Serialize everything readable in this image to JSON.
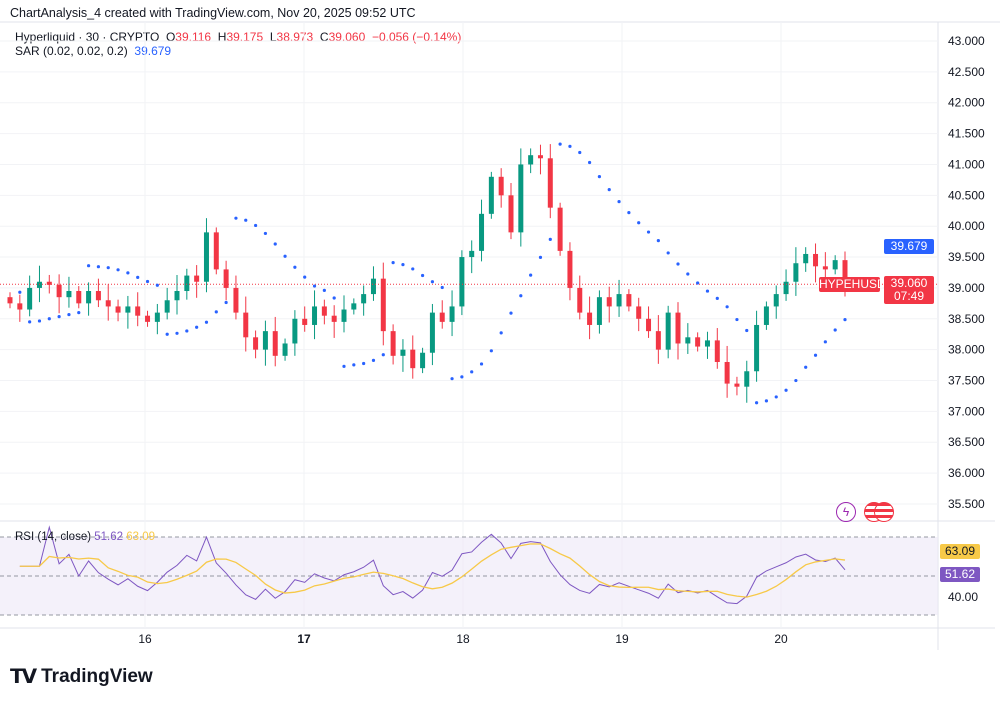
{
  "credit": "ChartAnalysis_4 created with TradingView.com, Nov 20, 2025 09:52 UTC",
  "legend": {
    "symbol": "Hyperliquid · 30 · CRYPTO",
    "o_label": "O",
    "o": "39.116",
    "h_label": "H",
    "h": "39.175",
    "l_label": "L",
    "l": "38.973",
    "c_label": "C",
    "c": "39.060",
    "change": "−0.056 (−0.14%)",
    "sar_label": "SAR (0.02, 0.02, 0.2)",
    "sar_value": "39.679"
  },
  "rsi_legend": {
    "label": "RSI (14, close)",
    "rsi": "51.62",
    "ma": "63.09"
  },
  "price_labels": {
    "sar": "39.679",
    "ticker": "HYPEHUSD",
    "last": "39.060",
    "countdown": "07:49"
  },
  "rsi_labels": {
    "ma": "63.09",
    "rsi": "51.62",
    "level": "40.00"
  },
  "logo": "TradingView",
  "colors": {
    "up": "#089981",
    "down": "#f23645",
    "sar": "#2962ff",
    "rsi": "#7e57c2",
    "rsi_ma": "#f7c948",
    "rsi_band": "#ede7f6"
  },
  "chart_data": {
    "type": "candlestick",
    "symbol": "HYPEHUSD",
    "interval": "30",
    "y_ticks": [
      "43.000",
      "42.500",
      "42.000",
      "41.500",
      "41.000",
      "40.500",
      "40.000",
      "39.500",
      "39.000",
      "38.500",
      "38.000",
      "37.500",
      "37.000",
      "36.500",
      "36.000",
      "35.500"
    ],
    "ylim": [
      35.5,
      43.0
    ],
    "x_ticks": [
      "16",
      "17",
      "18",
      "19",
      "20"
    ],
    "grid": true,
    "closes": [
      38.75,
      38.65,
      39.0,
      39.1,
      39.05,
      38.85,
      38.95,
      38.75,
      38.95,
      38.8,
      38.7,
      38.6,
      38.7,
      38.55,
      38.45,
      38.6,
      38.8,
      38.95,
      39.2,
      39.1,
      39.9,
      39.3,
      39.0,
      38.6,
      38.2,
      38.0,
      38.3,
      37.9,
      38.1,
      38.5,
      38.4,
      38.7,
      38.55,
      38.45,
      38.65,
      38.75,
      38.9,
      39.15,
      38.3,
      37.9,
      38.0,
      37.7,
      37.95,
      38.6,
      38.45,
      38.7,
      39.5,
      39.6,
      40.2,
      40.8,
      40.5,
      39.9,
      41.0,
      41.15,
      41.1,
      40.3,
      39.6,
      39.0,
      38.6,
      38.4,
      38.85,
      38.7,
      38.9,
      38.7,
      38.5,
      38.3,
      38.0,
      38.6,
      38.1,
      38.2,
      38.05,
      38.15,
      37.8,
      37.45,
      37.4,
      37.65,
      38.4,
      38.7,
      38.9,
      39.1,
      39.4,
      39.55,
      39.35,
      39.3,
      39.45,
      39.06
    ],
    "last_price": 39.06,
    "indicators": {
      "sar": {
        "params": [
          0.02,
          0.02,
          0.2
        ],
        "value": 39.679
      },
      "rsi": {
        "length": 14,
        "value": 51.62,
        "ma_value": 63.09,
        "bands": [
          70,
          50,
          30
        ],
        "level_tick": 40
      }
    }
  }
}
